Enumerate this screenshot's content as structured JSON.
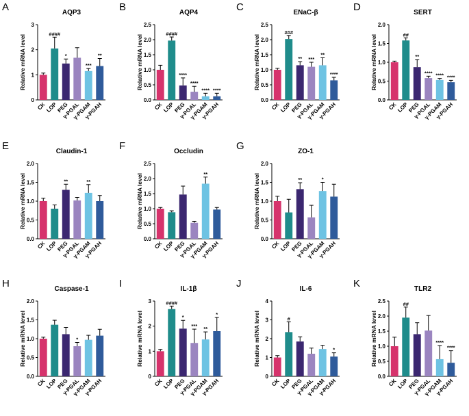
{
  "colors": {
    "CK": "#d6336c",
    "LOP": "#1f8c8b",
    "PEG": "#3b2770",
    "γ-PGAL": "#9b85c0",
    "γ-PGAM": "#6ec3e3",
    "γ-PGAH": "#2f5b9b"
  },
  "chart_data": [
    {
      "type": "bar",
      "label": "A",
      "title": "AQP3",
      "ylabel": "Relative mRNA level",
      "ylim": [
        0,
        3
      ],
      "yticks": [
        "0",
        "1",
        "2",
        "3"
      ],
      "categories": [
        "CK",
        "LOP",
        "PEG",
        "γ-PGAL",
        "γ-PGAM",
        "γ-PGAH"
      ],
      "values": [
        1.0,
        2.05,
        1.45,
        1.68,
        1.15,
        1.35
      ],
      "errors": [
        0.07,
        0.45,
        0.18,
        0.4,
        0.1,
        0.3
      ],
      "significance": [
        "",
        "####",
        "*",
        "",
        "***",
        "**"
      ]
    },
    {
      "type": "bar",
      "label": "B",
      "title": "AQP4",
      "ylabel": "Relative mRNA level",
      "ylim": [
        0,
        2.5
      ],
      "yticks": [
        "0.0",
        "0.5",
        "1.0",
        "1.5",
        "2.0",
        "2.5"
      ],
      "categories": [
        "CK",
        "LOP",
        "PEG",
        "γ-PGAL",
        "γ-PGAM",
        "γ-PGAH"
      ],
      "values": [
        1.0,
        1.97,
        0.48,
        0.27,
        0.12,
        0.12
      ],
      "errors": [
        0.15,
        0.12,
        0.25,
        0.18,
        0.1,
        0.1
      ],
      "significance": [
        "",
        "####",
        "****",
        "****",
        "****",
        "****"
      ]
    },
    {
      "type": "bar",
      "label": "C",
      "title": "ENaC-β",
      "ylabel": "Relative mRNA level",
      "ylim": [
        0,
        2.5
      ],
      "yticks": [
        "0.0",
        "0.5",
        "1.0",
        "1.5",
        "2.0",
        "2.5"
      ],
      "categories": [
        "CK",
        "LOP",
        "PEG",
        "γ-PGAL",
        "γ-PGAM",
        "γ-PGAH"
      ],
      "values": [
        1.0,
        2.02,
        1.15,
        1.1,
        1.15,
        0.65
      ],
      "errors": [
        0.05,
        0.12,
        0.12,
        0.15,
        0.25,
        0.1
      ],
      "significance": [
        "",
        "###",
        "**",
        "***",
        "**",
        "****"
      ]
    },
    {
      "type": "bar",
      "label": "D",
      "title": "SERT",
      "ylabel": "Relative mRNA level",
      "ylim": [
        0,
        2.0
      ],
      "yticks": [
        "0.0",
        "0.5",
        "1.0",
        "1.5",
        "2.0"
      ],
      "categories": [
        "CK",
        "LOP",
        "PEG",
        "γ-PGAL",
        "γ-PGAM",
        "γ-PGAH"
      ],
      "values": [
        1.0,
        1.58,
        0.87,
        0.58,
        0.53,
        0.47
      ],
      "errors": [
        0.03,
        0.07,
        0.2,
        0.05,
        0.04,
        0.05
      ],
      "significance": [
        "",
        "##",
        "**",
        "****",
        "****",
        "****"
      ]
    },
    {
      "type": "bar",
      "label": "E",
      "title": "Claudin-1",
      "ylabel": "Relative mRNA level",
      "ylim": [
        0,
        2.0
      ],
      "yticks": [
        "0.0",
        "0.5",
        "1.0",
        "1.5",
        "2.0"
      ],
      "categories": [
        "CK",
        "LOP",
        "PEG",
        "γ-PGAL",
        "γ-PGAM",
        "γ-PGAH"
      ],
      "values": [
        1.0,
        0.8,
        1.3,
        1.02,
        1.22,
        1.0
      ],
      "errors": [
        0.08,
        0.1,
        0.15,
        0.08,
        0.22,
        0.15
      ],
      "significance": [
        "",
        "",
        "**",
        "",
        "**",
        ""
      ]
    },
    {
      "type": "bar",
      "label": "F",
      "title": "Occludin",
      "ylabel": "Relative mRNA level",
      "ylim": [
        0,
        2.5
      ],
      "yticks": [
        "0.0",
        "0.5",
        "1.0",
        "1.5",
        "2.0",
        "2.5"
      ],
      "categories": [
        "CK",
        "LOP",
        "PEG",
        "γ-PGAL",
        "γ-PGAM",
        "γ-PGAH"
      ],
      "values": [
        1.0,
        0.88,
        1.47,
        0.53,
        1.83,
        0.97
      ],
      "errors": [
        0.04,
        0.05,
        0.28,
        0.05,
        0.22,
        0.07
      ],
      "significance": [
        "",
        "",
        "",
        "",
        "**",
        ""
      ]
    },
    {
      "type": "bar",
      "label": "G",
      "title": "ZO-1",
      "ylabel": "Relative mRNA level",
      "ylim": [
        0,
        2.0
      ],
      "yticks": [
        "0.0",
        "0.5",
        "1.0",
        "1.5",
        "2.0"
      ],
      "categories": [
        "CK",
        "LOP",
        "PEG",
        "γ-PGAL",
        "γ-PGAM",
        "γ-PGAH"
      ],
      "values": [
        1.0,
        0.7,
        1.32,
        0.57,
        1.27,
        1.12
      ],
      "errors": [
        0.13,
        0.35,
        0.17,
        0.32,
        0.23,
        0.33
      ],
      "significance": [
        "",
        "",
        "**",
        "",
        "*",
        ""
      ]
    },
    {
      "type": "bar",
      "label": "H",
      "title": "Caspase-1",
      "ylabel": "Relative mRNA level",
      "ylim": [
        0,
        2.0
      ],
      "yticks": [
        "0.0",
        "0.5",
        "1.0",
        "1.5",
        "2.0"
      ],
      "categories": [
        "CK",
        "LOP",
        "PEG",
        "γ-PGAL",
        "γ-PGAM",
        "γ-PGAH"
      ],
      "values": [
        1.0,
        1.37,
        1.12,
        0.8,
        0.97,
        1.08
      ],
      "errors": [
        0.04,
        0.12,
        0.18,
        0.1,
        0.12,
        0.17
      ],
      "significance": [
        "",
        "",
        "",
        "*",
        "",
        ""
      ]
    },
    {
      "type": "bar",
      "label": "I",
      "title": "IL-1β",
      "ylabel": "Relative mRNA level",
      "ylim": [
        0,
        3
      ],
      "yticks": [
        "0",
        "1",
        "2",
        "3"
      ],
      "categories": [
        "CK",
        "LOP",
        "PEG",
        "γ-PGAL",
        "γ-PGAM",
        "γ-PGAH"
      ],
      "values": [
        1.0,
        2.68,
        1.9,
        1.33,
        1.47,
        1.8
      ],
      "errors": [
        0.07,
        0.12,
        0.33,
        0.55,
        0.3,
        0.55
      ],
      "significance": [
        "",
        "####",
        "*",
        "***",
        "**",
        "*"
      ]
    },
    {
      "type": "bar",
      "label": "J",
      "title": "IL-6",
      "ylabel": "Relative mRNA level",
      "ylim": [
        0,
        4
      ],
      "yticks": [
        "0",
        "1",
        "2",
        "3",
        "4"
      ],
      "categories": [
        "CK",
        "LOP",
        "PEG",
        "γ-PGAL",
        "γ-PGAM",
        "γ-PGAH"
      ],
      "values": [
        1.0,
        2.35,
        1.85,
        1.2,
        1.45,
        1.05
      ],
      "errors": [
        0.1,
        0.55,
        0.25,
        0.3,
        0.2,
        0.2
      ],
      "significance": [
        "",
        "#",
        "",
        "",
        "",
        "*"
      ]
    },
    {
      "type": "bar",
      "label": "K",
      "title": "TLR2",
      "ylabel": "Relative mRNA level",
      "ylim": [
        0,
        2.5
      ],
      "yticks": [
        "0.0",
        "0.5",
        "1.0",
        "1.5",
        "2.0",
        "2.5"
      ],
      "categories": [
        "CK",
        "LOP",
        "PEG",
        "γ-PGAL",
        "γ-PGAM",
        "γ-PGAH"
      ],
      "values": [
        1.0,
        1.95,
        1.4,
        1.52,
        0.57,
        0.45
      ],
      "errors": [
        0.3,
        0.35,
        0.38,
        0.5,
        0.45,
        0.4
      ],
      "significance": [
        "",
        "##",
        "",
        "",
        "****",
        "****"
      ]
    }
  ]
}
